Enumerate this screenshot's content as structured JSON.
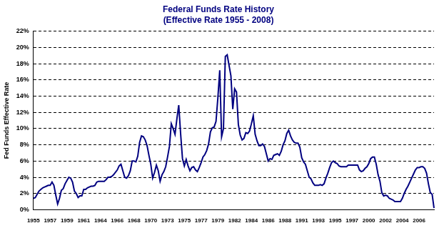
{
  "chart_data": {
    "type": "line",
    "title": "Federal Funds Rate History",
    "subtitle": "(Effective Rate 1955 - 2008)",
    "ylabel": "Fed Funds Effective Rate",
    "categories": [
      "1955",
      null,
      null,
      null,
      null,
      null,
      null,
      null,
      null,
      "1957",
      null,
      null,
      null,
      null,
      null,
      null,
      null,
      null,
      "1959",
      null,
      null,
      null,
      null,
      null,
      null,
      null,
      null,
      "1961",
      null,
      null,
      null,
      null,
      null,
      null,
      null,
      null,
      "1964",
      null,
      null,
      null,
      null,
      null,
      null,
      null,
      null,
      "1966",
      null,
      null,
      null,
      null,
      null,
      null,
      null,
      null,
      "1968",
      null,
      null,
      null,
      null,
      null,
      null,
      null,
      null,
      "1970",
      null,
      null,
      null,
      null,
      null,
      null,
      null,
      null,
      "1973",
      null,
      null,
      null,
      null,
      null,
      null,
      null,
      null,
      "1975",
      null,
      null,
      null,
      null,
      null,
      null,
      null,
      null,
      "1977",
      null,
      null,
      null,
      null,
      null,
      null,
      null,
      null,
      "1979",
      null,
      null,
      null,
      null,
      null,
      null,
      null,
      null,
      "1982",
      null,
      null,
      null,
      null,
      null,
      null,
      null,
      null,
      "1984",
      null,
      null,
      null,
      null,
      null,
      null,
      null,
      null,
      "1986",
      null,
      null,
      null,
      null,
      null,
      null,
      null,
      null,
      "1988",
      null,
      null,
      null,
      null,
      null,
      null,
      null,
      null,
      "1991",
      null,
      null,
      null,
      null,
      null,
      null,
      null,
      null,
      "1993",
      null,
      null,
      null,
      null,
      null,
      null,
      null,
      null,
      "1995",
      null,
      null,
      null,
      null,
      null,
      null,
      null,
      null,
      "1997",
      null,
      null,
      null,
      null,
      null,
      null,
      null,
      null,
      "2000",
      null,
      null,
      null,
      null,
      null,
      null,
      null,
      null,
      "2002",
      null,
      null,
      null,
      null,
      null,
      null,
      null,
      null,
      "2004",
      null,
      null,
      null,
      null,
      null,
      null,
      null,
      null,
      "2006",
      null,
      null,
      null,
      null,
      null,
      null,
      null,
      null
    ],
    "values": [
      1.4,
      1.5,
      1.9,
      2.3,
      2.5,
      2.7,
      2.8,
      2.9,
      3.0,
      3.0,
      3.4,
      3.0,
      1.8,
      0.7,
      1.4,
      2.4,
      2.6,
      3.2,
      3.6,
      4.0,
      3.9,
      3.4,
      2.3,
      2.0,
      1.5,
      1.7,
      1.7,
      2.5,
      2.5,
      2.7,
      2.8,
      2.9,
      2.9,
      3.0,
      3.4,
      3.5,
      3.5,
      3.5,
      3.5,
      3.7,
      4.0,
      4.0,
      4.1,
      4.3,
      4.6,
      4.9,
      5.4,
      5.6,
      4.8,
      4.0,
      3.9,
      4.2,
      4.8,
      6.0,
      6.0,
      5.9,
      6.6,
      8.3,
      9.1,
      9.0,
      8.6,
      7.9,
      6.7,
      5.6,
      3.9,
      4.6,
      5.5,
      4.8,
      3.5,
      4.3,
      4.7,
      5.3,
      6.5,
      7.8,
      10.6,
      10.0,
      9.3,
      11.2,
      12.9,
      9.4,
      6.3,
      5.4,
      6.2,
      5.4,
      4.8,
      5.2,
      5.3,
      4.9,
      4.7,
      5.2,
      5.8,
      6.5,
      6.8,
      7.3,
      8.1,
      9.6,
      10.1,
      10.2,
      10.9,
      13.8,
      17.2,
      9.0,
      10.0,
      18.9,
      19.1,
      17.8,
      16.5,
      12.4,
      14.9,
      14.5,
      10.5,
      9.2,
      8.6,
      8.8,
      9.5,
      9.4,
      9.7,
      10.6,
      11.6,
      9.3,
      8.5,
      7.9,
      7.9,
      8.1,
      7.8,
      6.9,
      6.0,
      6.3,
      6.2,
      6.7,
      6.8,
      6.9,
      6.7,
      7.2,
      8.0,
      8.5,
      9.4,
      9.8,
      9.1,
      8.6,
      8.3,
      8.2,
      8.2,
      7.7,
      6.4,
      5.9,
      5.6,
      4.8,
      4.0,
      3.8,
      3.3,
      3.0,
      3.0,
      3.0,
      3.1,
      3.0,
      3.2,
      3.9,
      4.5,
      5.2,
      5.8,
      6.0,
      5.8,
      5.7,
      5.4,
      5.3,
      5.3,
      5.3,
      5.3,
      5.5,
      5.5,
      5.5,
      5.5,
      5.5,
      5.5,
      4.9,
      4.7,
      4.8,
      5.1,
      5.3,
      5.7,
      6.3,
      6.5,
      6.5,
      5.6,
      4.3,
      3.5,
      2.1,
      1.7,
      1.8,
      1.7,
      1.4,
      1.3,
      1.2,
      1.0,
      1.0,
      1.0,
      1.0,
      1.4,
      2.0,
      2.5,
      2.9,
      3.4,
      3.9,
      4.4,
      4.9,
      5.2,
      5.2,
      5.3,
      5.3,
      5.1,
      4.5,
      3.2,
      2.1,
      1.9,
      0.2
    ],
    "color": "#000080",
    "ylim": [
      0,
      22
    ],
    "yticks": [
      {
        "value": 0,
        "label": "0%"
      },
      {
        "value": 2,
        "label": "2%"
      },
      {
        "value": 4,
        "label": "4%"
      },
      {
        "value": 6,
        "label": "6%"
      },
      {
        "value": 8,
        "label": "8%"
      },
      {
        "value": 10,
        "label": "10%"
      },
      {
        "value": 12,
        "label": "12%"
      },
      {
        "value": 14,
        "label": "14%"
      },
      {
        "value": 16,
        "label": "16%"
      },
      {
        "value": 18,
        "label": "18%"
      },
      {
        "value": 20,
        "label": "20%"
      },
      {
        "value": 22,
        "label": "22%"
      }
    ],
    "grid": true
  }
}
